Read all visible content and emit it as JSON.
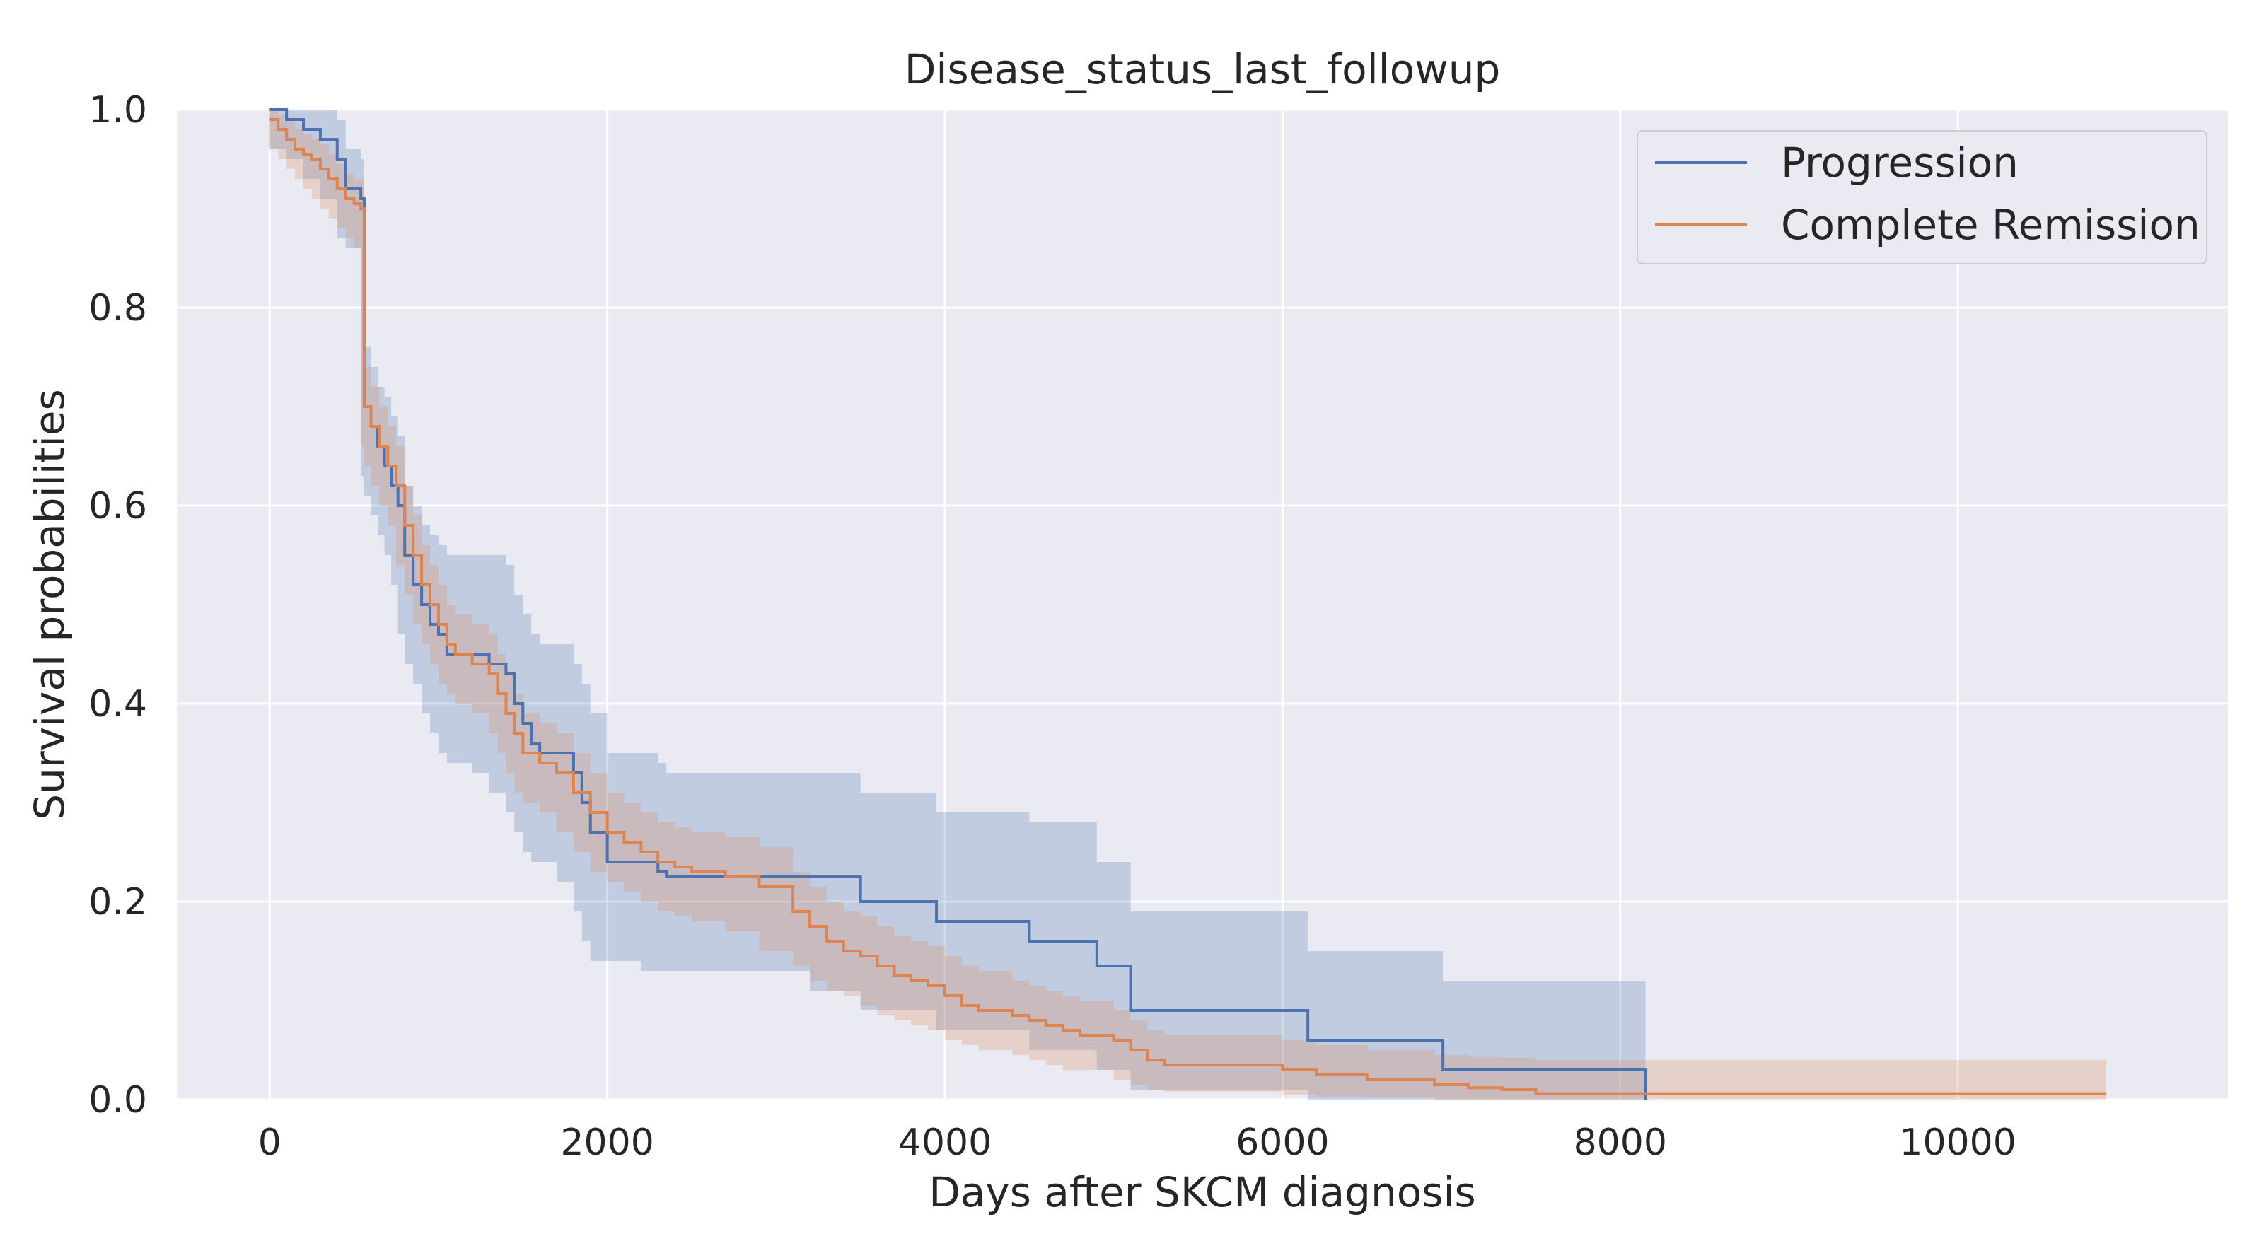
{
  "chart_data": {
    "type": "line",
    "subtype": "kaplan-meier-step",
    "title": "Disease_status_last_followup",
    "xlabel": "Days after SKCM diagnosis",
    "ylabel": "Survival probabilities",
    "xlim": [
      -550,
      11600
    ],
    "ylim": [
      0.0,
      1.0
    ],
    "xticks": [
      0,
      2000,
      4000,
      6000,
      8000,
      10000
    ],
    "xtick_labels": [
      "0",
      "2000",
      "4000",
      "6000",
      "8000",
      "10000"
    ],
    "yticks": [
      0.0,
      0.2,
      0.4,
      0.6,
      0.8,
      1.0
    ],
    "ytick_labels": [
      "0.0",
      "0.2",
      "0.4",
      "0.6",
      "0.8",
      "1.0"
    ],
    "grid": true,
    "legend_position": "top-right",
    "series": [
      {
        "name": "Progression",
        "color": "#4c72b0",
        "x": [
          0,
          100,
          200,
          300,
          400,
          450,
          540,
          560,
          600,
          640,
          680,
          720,
          760,
          800,
          850,
          900,
          950,
          1000,
          1050,
          1100,
          1200,
          1300,
          1400,
          1450,
          1500,
          1550,
          1600,
          1700,
          1800,
          1850,
          1900,
          2000,
          2100,
          2200,
          2300,
          2350,
          2500,
          2800,
          3000,
          3200,
          3500,
          3950,
          4500,
          4900,
          5100,
          6150,
          6950,
          8150
        ],
        "y": [
          1.0,
          0.99,
          0.98,
          0.97,
          0.95,
          0.92,
          0.91,
          0.7,
          0.68,
          0.66,
          0.64,
          0.62,
          0.6,
          0.55,
          0.52,
          0.5,
          0.48,
          0.47,
          0.45,
          0.45,
          0.45,
          0.44,
          0.43,
          0.4,
          0.38,
          0.36,
          0.35,
          0.35,
          0.33,
          0.3,
          0.27,
          0.24,
          0.24,
          0.24,
          0.23,
          0.225,
          0.225,
          0.225,
          0.225,
          0.225,
          0.2,
          0.18,
          0.16,
          0.135,
          0.09,
          0.06,
          0.03,
          0.0
        ],
        "ci_lower": [
          0.97,
          0.96,
          0.95,
          0.93,
          0.91,
          0.87,
          0.86,
          0.63,
          0.61,
          0.59,
          0.57,
          0.55,
          0.52,
          0.47,
          0.44,
          0.42,
          0.39,
          0.37,
          0.35,
          0.34,
          0.34,
          0.33,
          0.31,
          0.29,
          0.27,
          0.25,
          0.24,
          0.24,
          0.22,
          0.19,
          0.16,
          0.14,
          0.14,
          0.14,
          0.13,
          0.13,
          0.13,
          0.13,
          0.13,
          0.13,
          0.11,
          0.09,
          0.07,
          0.05,
          0.03,
          0.01,
          0.0,
          0.0
        ],
        "ci_upper": [
          1.0,
          1.0,
          1.0,
          1.0,
          0.99,
          0.96,
          0.95,
          0.76,
          0.74,
          0.72,
          0.71,
          0.69,
          0.67,
          0.62,
          0.6,
          0.58,
          0.57,
          0.56,
          0.55,
          0.55,
          0.55,
          0.55,
          0.54,
          0.51,
          0.49,
          0.47,
          0.46,
          0.46,
          0.44,
          0.42,
          0.39,
          0.35,
          0.35,
          0.35,
          0.34,
          0.33,
          0.33,
          0.33,
          0.33,
          0.33,
          0.31,
          0.29,
          0.28,
          0.24,
          0.19,
          0.15,
          0.12,
          0.12
        ]
      },
      {
        "name": "Complete Remission",
        "color": "#dd8452",
        "x": [
          0,
          50,
          100,
          150,
          200,
          250,
          300,
          350,
          400,
          450,
          500,
          540,
          560,
          600,
          650,
          700,
          750,
          800,
          850,
          900,
          950,
          1000,
          1050,
          1100,
          1200,
          1300,
          1350,
          1400,
          1450,
          1500,
          1600,
          1700,
          1800,
          1900,
          2000,
          2100,
          2200,
          2300,
          2400,
          2500,
          2700,
          2900,
          3100,
          3200,
          3300,
          3400,
          3500,
          3600,
          3700,
          3800,
          3900,
          4000,
          4100,
          4200,
          4400,
          4500,
          4600,
          4700,
          4800,
          5000,
          5100,
          5200,
          5300,
          6000,
          6200,
          6500,
          6900,
          7100,
          7300,
          7500,
          8000,
          10880
        ],
        "y": [
          0.99,
          0.98,
          0.97,
          0.96,
          0.955,
          0.95,
          0.94,
          0.93,
          0.92,
          0.91,
          0.905,
          0.9,
          0.7,
          0.68,
          0.66,
          0.64,
          0.62,
          0.58,
          0.55,
          0.52,
          0.5,
          0.48,
          0.46,
          0.45,
          0.44,
          0.43,
          0.41,
          0.39,
          0.37,
          0.35,
          0.34,
          0.33,
          0.31,
          0.29,
          0.27,
          0.26,
          0.25,
          0.24,
          0.235,
          0.23,
          0.225,
          0.215,
          0.19,
          0.175,
          0.16,
          0.15,
          0.145,
          0.135,
          0.125,
          0.12,
          0.115,
          0.105,
          0.095,
          0.09,
          0.085,
          0.08,
          0.075,
          0.07,
          0.065,
          0.06,
          0.05,
          0.04,
          0.035,
          0.03,
          0.025,
          0.02,
          0.015,
          0.012,
          0.01,
          0.006,
          0.006,
          0.006
        ],
        "ci_lower": [
          0.97,
          0.96,
          0.95,
          0.94,
          0.93,
          0.92,
          0.91,
          0.9,
          0.89,
          0.88,
          0.87,
          0.86,
          0.66,
          0.64,
          0.62,
          0.6,
          0.58,
          0.54,
          0.51,
          0.48,
          0.46,
          0.44,
          0.42,
          0.41,
          0.4,
          0.39,
          0.37,
          0.35,
          0.33,
          0.31,
          0.3,
          0.29,
          0.27,
          0.25,
          0.23,
          0.22,
          0.21,
          0.2,
          0.19,
          0.185,
          0.18,
          0.17,
          0.15,
          0.135,
          0.12,
          0.11,
          0.105,
          0.095,
          0.085,
          0.08,
          0.075,
          0.07,
          0.06,
          0.055,
          0.05,
          0.045,
          0.04,
          0.035,
          0.03,
          0.03,
          0.02,
          0.015,
          0.01,
          0.008,
          0.005,
          0.003,
          0.002,
          0.0,
          0.0,
          0.0,
          0.0,
          0.0
        ],
        "ci_upper": [
          1.0,
          0.995,
          0.99,
          0.98,
          0.975,
          0.97,
          0.965,
          0.955,
          0.945,
          0.935,
          0.93,
          0.93,
          0.74,
          0.72,
          0.7,
          0.68,
          0.66,
          0.62,
          0.59,
          0.56,
          0.54,
          0.52,
          0.5,
          0.49,
          0.48,
          0.47,
          0.45,
          0.43,
          0.41,
          0.39,
          0.38,
          0.37,
          0.35,
          0.33,
          0.31,
          0.3,
          0.29,
          0.28,
          0.275,
          0.27,
          0.265,
          0.255,
          0.23,
          0.215,
          0.2,
          0.19,
          0.185,
          0.175,
          0.165,
          0.16,
          0.155,
          0.145,
          0.135,
          0.13,
          0.12,
          0.115,
          0.11,
          0.105,
          0.1,
          0.09,
          0.08,
          0.07,
          0.065,
          0.06,
          0.055,
          0.05,
          0.045,
          0.043,
          0.042,
          0.04,
          0.04,
          0.04
        ]
      }
    ]
  }
}
